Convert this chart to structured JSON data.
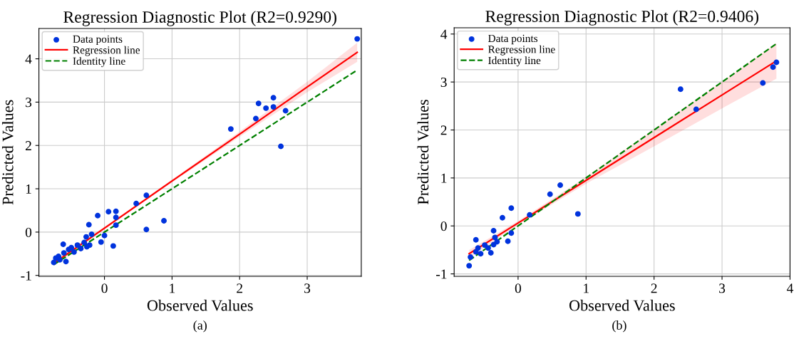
{
  "chart_data": [
    {
      "type": "scatter",
      "title": "Regression Diagnostic Plot (R2=0.9290)",
      "xlabel": "Observed Values",
      "ylabel": "Predicted Values",
      "annotations": [
        "(a)"
      ],
      "xlim": [
        -0.97,
        3.8
      ],
      "ylim": [
        -1.02,
        4.7
      ],
      "xticks": [
        0,
        1,
        2,
        3
      ],
      "yticks": [
        -1,
        0,
        1,
        2,
        3,
        4
      ],
      "grid": true,
      "legend": "top left",
      "series": [
        {
          "name": "Data points",
          "marker": "circle",
          "color": "#0033dd",
          "x": [
            -0.75,
            -0.72,
            -0.68,
            -0.66,
            -0.61,
            -0.6,
            -0.57,
            -0.53,
            -0.49,
            -0.45,
            -0.4,
            -0.35,
            -0.3,
            -0.26,
            -0.22,
            -0.19,
            -0.27,
            -0.23,
            -0.1,
            -0.05,
            0.0,
            0.06,
            0.13,
            0.17,
            0.17,
            0.17,
            0.47,
            0.62,
            0.62,
            0.88,
            1.87,
            2.24,
            2.28,
            2.39,
            2.5,
            2.5,
            2.61,
            2.68,
            3.74
          ],
          "values": [
            -0.7,
            -0.6,
            -0.56,
            -0.64,
            -0.28,
            -0.48,
            -0.68,
            -0.4,
            -0.36,
            -0.46,
            -0.3,
            -0.38,
            -0.24,
            -0.34,
            -0.3,
            -0.05,
            -0.11,
            0.17,
            0.38,
            -0.23,
            -0.08,
            0.47,
            -0.32,
            0.48,
            0.34,
            0.16,
            0.66,
            0.85,
            0.06,
            0.26,
            2.38,
            2.62,
            2.97,
            2.86,
            3.1,
            2.89,
            1.98,
            2.8,
            4.46
          ]
        },
        {
          "name": "Regression line",
          "type": "line",
          "color": "#ff0000",
          "line_style": "solid",
          "x": [
            -0.75,
            0,
            1,
            2,
            3,
            3.74
          ],
          "values": [
            -0.72,
            0.09,
            1.18,
            2.26,
            3.35,
            4.15
          ],
          "lower": [
            -0.78,
            0.06,
            1.15,
            2.2,
            3.23,
            3.93
          ],
          "upper": [
            -0.66,
            0.12,
            1.21,
            2.32,
            3.47,
            4.37
          ]
        },
        {
          "name": "Identity line",
          "type": "line",
          "color": "#008000",
          "line_style": "dashed",
          "x": [
            -0.75,
            3.74
          ],
          "values": [
            -0.75,
            3.74
          ]
        }
      ]
    },
    {
      "type": "scatter",
      "title": "Regression Diagnostic Plot (R2=0.9406)",
      "xlabel": "Observed Values",
      "ylabel": "Predicted Values",
      "annotations": [
        "(b)"
      ],
      "xlim": [
        -0.94,
        4.0
      ],
      "ylim": [
        -1.05,
        4.13
      ],
      "xticks": [
        0,
        1,
        2,
        3,
        4
      ],
      "yticks": [
        -1,
        0,
        1,
        2,
        3,
        4
      ],
      "grid": true,
      "legend": "top left",
      "series": [
        {
          "name": "Data points",
          "marker": "circle",
          "color": "#0033dd",
          "x": [
            -0.72,
            -0.7,
            -0.62,
            -0.62,
            -0.59,
            -0.55,
            -0.49,
            -0.44,
            -0.4,
            -0.36,
            -0.36,
            -0.34,
            -0.31,
            -0.23,
            -0.15,
            -0.1,
            -0.1,
            0.17,
            0.47,
            0.62,
            0.88,
            2.39,
            2.62,
            3.6,
            3.75,
            3.8
          ],
          "values": [
            -0.83,
            -0.65,
            -0.29,
            -0.54,
            -0.46,
            -0.58,
            -0.4,
            -0.46,
            -0.56,
            -0.1,
            -0.39,
            -0.24,
            -0.33,
            0.17,
            -0.32,
            0.37,
            -0.15,
            0.23,
            0.66,
            0.85,
            0.25,
            2.85,
            2.43,
            2.98,
            3.31,
            3.41
          ]
        },
        {
          "name": "Regression line",
          "type": "line",
          "color": "#ff0000",
          "line_style": "solid",
          "x": [
            -0.72,
            0,
            1,
            2,
            3,
            3.8
          ],
          "values": [
            -0.58,
            0.06,
            0.95,
            1.84,
            2.73,
            3.44
          ],
          "lower": [
            -0.66,
            0.02,
            0.88,
            1.66,
            2.45,
            3.07
          ],
          "upper": [
            -0.5,
            0.1,
            1.02,
            2.02,
            3.01,
            3.81
          ]
        },
        {
          "name": "Identity line",
          "type": "line",
          "color": "#008000",
          "line_style": "dashed",
          "x": [
            -0.72,
            3.8
          ],
          "values": [
            -0.72,
            3.8
          ]
        }
      ]
    }
  ]
}
